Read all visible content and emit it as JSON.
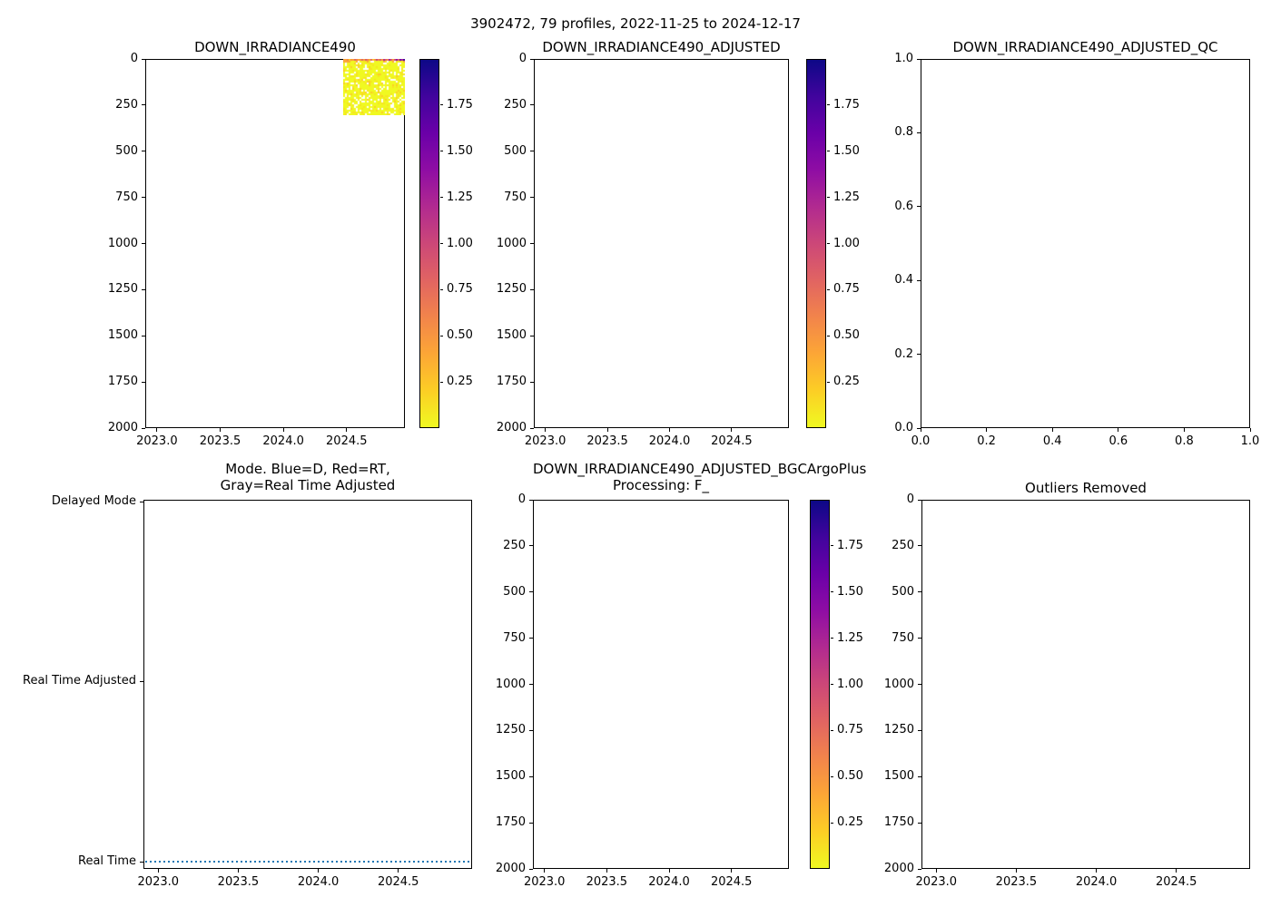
{
  "figure": {
    "title": "3902472, 79 profiles, 2022-11-25 to 2024-12-17",
    "background": "#ffffff",
    "line_blue": "#1f77b4"
  },
  "subplots": [
    {
      "title": "DOWN_IRRADIANCE490"
    },
    {
      "title": "DOWN_IRRADIANCE490_ADJUSTED"
    },
    {
      "title": "DOWN_IRRADIANCE490_ADJUSTED_QC"
    },
    {
      "title_line1": "Mode. Blue=D, Red=RT,",
      "title_line2": "Gray=Real Time Adjusted"
    },
    {
      "title_line1": "DOWN_IRRADIANCE490_ADJUSTED_BGCArgoPlus",
      "title_line2": "Processing: F_"
    },
    {
      "title": "Outliers Removed"
    }
  ],
  "ticks": {
    "year": [
      "2023.0",
      "2023.5",
      "2024.0",
      "2024.5"
    ],
    "depth": [
      "0",
      "250",
      "500",
      "750",
      "1000",
      "1250",
      "1500",
      "1750",
      "2000"
    ],
    "unit_x": [
      "0.0",
      "0.2",
      "0.4",
      "0.6",
      "0.8",
      "1.0"
    ],
    "unit_y_desc": [
      "1.0",
      "0.8",
      "0.6",
      "0.4",
      "0.2",
      "0.0"
    ],
    "colorbar": [
      "1.75",
      "1.50",
      "1.25",
      "1.00",
      "0.75",
      "0.50",
      "0.25"
    ],
    "mode": [
      "Delayed Mode",
      "Real Time Adjusted",
      "Real Time"
    ]
  },
  "colormap": {
    "name": "plasma reversed (high=dark blue, low=yellow)",
    "stops_top_to_bottom": [
      "#0d0887",
      "#41049d",
      "#6a00a8",
      "#8f0da4",
      "#b12a90",
      "#cc4778",
      "#e16462",
      "#f2844b",
      "#fca636",
      "#fcce25",
      "#f0f921"
    ]
  },
  "heatmap_render": {
    "n_cols": 34,
    "n_rows": 31,
    "seed": 42,
    "body_color": "#f0f921",
    "body_alt_colors": [
      "#f6e620",
      "#fcce25",
      "#fca636"
    ],
    "gap_color": "#ffffff",
    "gap_probability": 0.17,
    "surface_colors": [
      "#f9a242",
      "#fca636",
      "#f2844b",
      "#fcce25",
      "#f89441",
      "#fca636",
      "#e16462",
      "#f2844b",
      "#fca636",
      "#f89441",
      "#e16462",
      "#fca636",
      "#d8576b",
      "#f2844b",
      "#fca636",
      "#e16462",
      "#fcce25",
      "#f89441",
      "#cc4778",
      "#f2844b",
      "#d8576b",
      "#fca636",
      "#b12a90",
      "#e16462",
      "#f2844b",
      "#9c179e",
      "#d8576b",
      "#fca636",
      "#cc4778",
      "#8f0da4",
      "#e16462",
      "#6a00a8",
      "#b12a90",
      "#41049d"
    ]
  },
  "chart_data": [
    {
      "type": "heatmap",
      "title": "DOWN_IRRADIANCE490",
      "xlabel": "",
      "ylabel": "",
      "x_axis": {
        "tick_values": [
          2023.0,
          2023.5,
          2024.0,
          2024.5
        ],
        "range": [
          2022.91,
          2024.96
        ],
        "units": "decimal year"
      },
      "y_axis": {
        "tick_values": [
          0,
          250,
          500,
          750,
          1000,
          1250,
          1500,
          1750,
          2000
        ],
        "range": [
          2000,
          0
        ],
        "units": "depth (m), 0 at top"
      },
      "colorbar": {
        "value_range": [
          0.0,
          2.0
        ],
        "tick_values": [
          0.25,
          0.5,
          0.75,
          1.0,
          1.25,
          1.5,
          1.75
        ],
        "colormap": "plasma reversed (2.0=dark navy, 0=yellow)"
      },
      "data_extent": {
        "x": [
          2024.45,
          2024.96
        ],
        "depth": [
          0,
          305
        ]
      },
      "description": "Irradiance profiles present only for ~mid-2024 through end-2024, depths 0 to ~305 m. Body values mostly low (<0.25, yellow) with scattered white missing-data dashes; surface bin shows elevated values.",
      "surface_bin_values_estimate": [
        0.45,
        0.4,
        0.5,
        0.2,
        0.45,
        0.4,
        0.75,
        0.5,
        0.4,
        0.45,
        0.75,
        0.4,
        0.85,
        0.5,
        0.4,
        0.75,
        0.2,
        0.45,
        1.0,
        0.5,
        0.85,
        0.4,
        1.3,
        0.75,
        0.5,
        1.5,
        0.85,
        0.4,
        1.0,
        1.55,
        0.75,
        1.65,
        1.3,
        1.9
      ]
    },
    {
      "type": "heatmap",
      "title": "DOWN_IRRADIANCE490_ADJUSTED",
      "x_axis": {
        "tick_values": [
          2023.0,
          2023.5,
          2024.0,
          2024.5
        ],
        "range": [
          2022.91,
          2024.96
        ]
      },
      "y_axis": {
        "tick_values": [
          0,
          250,
          500,
          750,
          1000,
          1250,
          1500,
          1750,
          2000
        ],
        "range": [
          2000,
          0
        ]
      },
      "colorbar": {
        "value_range": [
          0.0,
          2.0
        ],
        "tick_values": [
          0.25,
          0.5,
          0.75,
          1.0,
          1.25,
          1.5,
          1.75
        ]
      },
      "values": [],
      "description": "No adjusted data plotted (empty axes)."
    },
    {
      "type": "scatter",
      "title": "DOWN_IRRADIANCE490_ADJUSTED_QC",
      "x_axis": {
        "tick_values": [
          0.0,
          0.2,
          0.4,
          0.6,
          0.8,
          1.0
        ],
        "range": [
          0.0,
          1.0
        ]
      },
      "y_axis": {
        "tick_values": [
          0.0,
          0.2,
          0.4,
          0.6,
          0.8,
          1.0
        ],
        "range": [
          0.0,
          1.0
        ]
      },
      "values": [],
      "description": "No QC data plotted (empty axes)."
    },
    {
      "type": "line",
      "title": "Mode. Blue=D, Red=RT, Gray=Real Time Adjusted",
      "x_axis": {
        "tick_values": [
          2023.0,
          2023.5,
          2024.0,
          2024.5
        ],
        "range": [
          2022.91,
          2024.96
        ]
      },
      "y_axis": {
        "categories": [
          "Real Time",
          "Real Time Adjusted",
          "Delayed Mode"
        ]
      },
      "series": [
        {
          "name": "mode",
          "style": "dotted",
          "color": "#1f77b4",
          "y_value": "Real Time",
          "x_span": [
            2022.91,
            2024.96
          ],
          "description": "All 79 profiles are Real Time mode: dotted blue line along the Real Time level for the full time range."
        }
      ]
    },
    {
      "type": "heatmap",
      "title": "DOWN_IRRADIANCE490_ADJUSTED_BGCArgoPlus Processing: F_",
      "x_axis": {
        "tick_values": [
          2023.0,
          2023.5,
          2024.0,
          2024.5
        ],
        "range": [
          2022.91,
          2024.96
        ]
      },
      "y_axis": {
        "tick_values": [
          0,
          250,
          500,
          750,
          1000,
          1250,
          1500,
          1750,
          2000
        ],
        "range": [
          2000,
          0
        ]
      },
      "colorbar": {
        "value_range": [
          0.0,
          2.0
        ],
        "tick_values": [
          0.25,
          0.5,
          0.75,
          1.0,
          1.25,
          1.5,
          1.75
        ]
      },
      "values": [],
      "description": "No BGCArgoPlus-processed data plotted (empty axes)."
    },
    {
      "type": "heatmap",
      "title": "Outliers Removed",
      "x_axis": {
        "tick_values": [
          2023.0,
          2023.5,
          2024.0,
          2024.5
        ],
        "range": [
          2022.91,
          2024.96
        ]
      },
      "y_axis": {
        "tick_values": [
          0,
          250,
          500,
          750,
          1000,
          1250,
          1500,
          1750,
          2000
        ],
        "range": [
          2000,
          0
        ]
      },
      "values": [],
      "description": "No outlier-removed data plotted (empty axes)."
    }
  ]
}
